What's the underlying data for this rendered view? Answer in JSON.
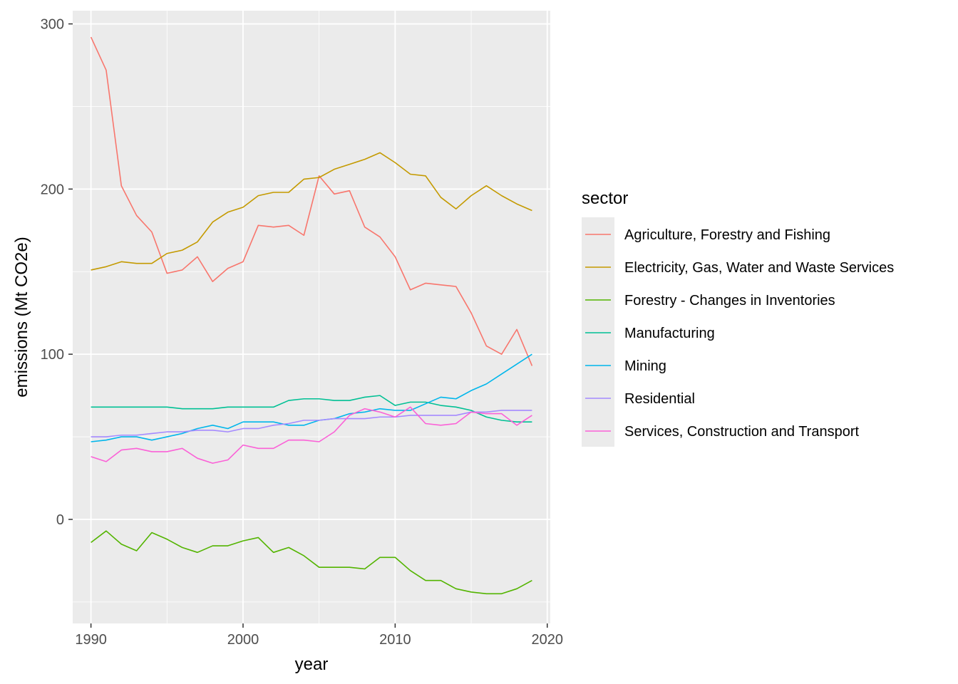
{
  "chart_data": {
    "type": "line",
    "xlabel": "year",
    "ylabel": "emissions (Mt CO2e)",
    "xlim": [
      1988.8,
      2020.2
    ],
    "ylim": [
      -63,
      308
    ],
    "x_ticks": [
      1990,
      2000,
      2010,
      2020
    ],
    "y_ticks": [
      0,
      100,
      200,
      300
    ],
    "x_tick_labels": [
      "1990",
      "2000",
      "2010",
      "2020"
    ],
    "y_tick_labels": [
      "0",
      "100",
      "200",
      "300"
    ],
    "grid": true,
    "legend_title": "sector",
    "legend_position": "right",
    "x": [
      1990,
      1991,
      1992,
      1993,
      1994,
      1995,
      1996,
      1997,
      1998,
      1999,
      2000,
      2001,
      2002,
      2003,
      2004,
      2005,
      2006,
      2007,
      2008,
      2009,
      2010,
      2011,
      2012,
      2013,
      2014,
      2015,
      2016,
      2017,
      2018,
      2019
    ],
    "series": [
      {
        "name": "Agriculture, Forestry and Fishing",
        "color": "#F8766D",
        "values": [
          292,
          272,
          202,
          184,
          174,
          149,
          151,
          159,
          144,
          152,
          156,
          178,
          177,
          178,
          172,
          208,
          197,
          199,
          177,
          171,
          159,
          139,
          143,
          142,
          141,
          125,
          105,
          100,
          115,
          93
        ]
      },
      {
        "name": "Electricity, Gas, Water and Waste Services",
        "color": "#C49A00",
        "values": [
          151,
          153,
          156,
          155,
          155,
          161,
          163,
          168,
          180,
          186,
          189,
          196,
          198,
          198,
          206,
          207,
          212,
          215,
          218,
          222,
          216,
          209,
          208,
          195,
          188,
          196,
          202,
          196,
          191,
          187
        ]
      },
      {
        "name": "Forestry - Changes in Inventories",
        "color": "#53B400",
        "values": [
          -14,
          -7,
          -15,
          -19,
          -8,
          -12,
          -17,
          -20,
          -16,
          -16,
          -13,
          -11,
          -20,
          -17,
          -22,
          -29,
          -29,
          -29,
          -30,
          -23,
          -23,
          -31,
          -37,
          -37,
          -42,
          -44,
          -45,
          -45,
          -42,
          -37
        ]
      },
      {
        "name": "Manufacturing",
        "color": "#00C094",
        "values": [
          68,
          68,
          68,
          68,
          68,
          68,
          67,
          67,
          67,
          68,
          68,
          68,
          68,
          72,
          73,
          73,
          72,
          72,
          74,
          75,
          69,
          71,
          71,
          69,
          68,
          66,
          62,
          60,
          59,
          59
        ]
      },
      {
        "name": "Mining",
        "color": "#00B6EB",
        "values": [
          47,
          48,
          50,
          50,
          48,
          50,
          52,
          55,
          57,
          55,
          59,
          59,
          59,
          57,
          57,
          60,
          61,
          64,
          65,
          67,
          66,
          66,
          70,
          74,
          73,
          78,
          82,
          88,
          94,
          100
        ]
      },
      {
        "name": "Residential",
        "color": "#A58AFF",
        "values": [
          50,
          50,
          51,
          51,
          52,
          53,
          53,
          54,
          54,
          53,
          55,
          55,
          57,
          58,
          60,
          60,
          61,
          61,
          61,
          62,
          62,
          63,
          63,
          63,
          63,
          65,
          65,
          66,
          66,
          66
        ]
      },
      {
        "name": "Services, Construction and Transport",
        "color": "#FB61D7",
        "values": [
          38,
          35,
          42,
          43,
          41,
          41,
          43,
          37,
          34,
          36,
          45,
          43,
          43,
          48,
          48,
          47,
          53,
          63,
          67,
          65,
          62,
          68,
          58,
          57,
          58,
          65,
          64,
          64,
          57,
          63
        ]
      }
    ]
  }
}
